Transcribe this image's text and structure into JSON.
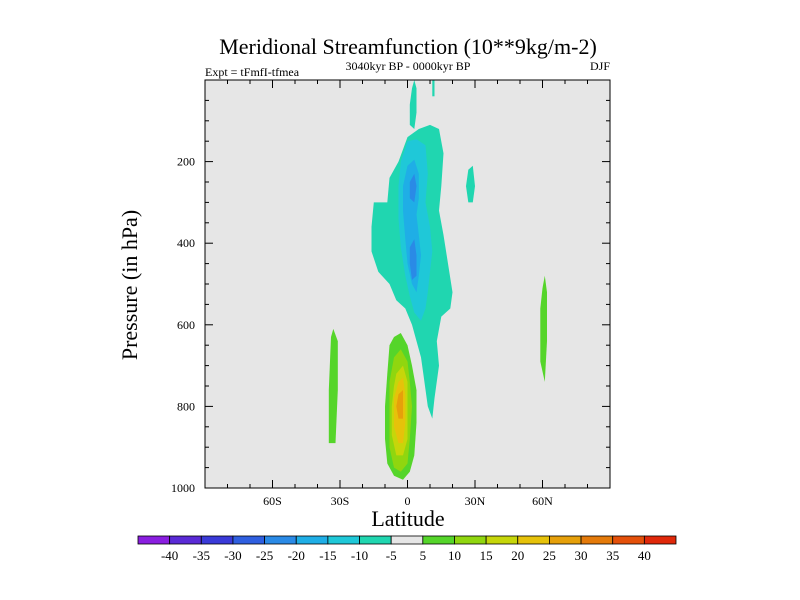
{
  "chart_data": {
    "type": "heatmap",
    "title": "Meridional Streamfunction (10**9kg/m-2)",
    "subtitle_left": "Expt = tFmfI-tfmea",
    "subtitle_center": "3040kyr BP - 0000kyr BP",
    "subtitle_right": "DJF",
    "xlabel": "Latitude",
    "ylabel": "Pressure (in hPa)",
    "xlim": [
      -90,
      90
    ],
    "ylim": [
      0,
      1000
    ],
    "y_inverted": true,
    "x_ticks": [
      {
        "value": -60,
        "label": "60S"
      },
      {
        "value": -30,
        "label": "30S"
      },
      {
        "value": 0,
        "label": "0"
      },
      {
        "value": 30,
        "label": "30N"
      },
      {
        "value": 60,
        "label": "60N"
      }
    ],
    "y_ticks": [
      {
        "value": 200,
        "label": "200"
      },
      {
        "value": 400,
        "label": "400"
      },
      {
        "value": 600,
        "label": "600"
      },
      {
        "value": 800,
        "label": "800"
      },
      {
        "value": 1000,
        "label": "1000"
      }
    ],
    "background_color": "#e6e6e6",
    "colorbar": {
      "levels": [
        "-40",
        "-35",
        "-30",
        "-25",
        "-20",
        "-15",
        "-10",
        "-5",
        "5",
        "10",
        "15",
        "20",
        "25",
        "30",
        "35",
        "40"
      ],
      "colors": [
        "#8a1ee0",
        "#5a2ad6",
        "#3a3ad8",
        "#2f5fe0",
        "#2a8ae6",
        "#1faee6",
        "#1fc8d8",
        "#20d6b0",
        "#e6e6e6",
        "#55d52a",
        "#90d60f",
        "#c6d60a",
        "#e6c20a",
        "#e6a00a",
        "#e47a0a",
        "#e4500a",
        "#e0280a"
      ]
    },
    "regions": [
      {
        "level": "-10..-5",
        "color": "#20d6b0",
        "points": [
          [
            -9,
            300
          ],
          [
            -8,
            240
          ],
          [
            -4,
            200
          ],
          [
            0,
            140
          ],
          [
            5,
            120
          ],
          [
            10,
            110
          ],
          [
            14,
            120
          ],
          [
            16,
            180
          ],
          [
            15,
            260
          ],
          [
            14,
            320
          ],
          [
            16,
            380
          ],
          [
            18,
            450
          ],
          [
            20,
            520
          ],
          [
            19,
            560
          ],
          [
            15,
            580
          ],
          [
            13,
            640
          ],
          [
            14,
            700
          ],
          [
            12,
            780
          ],
          [
            11,
            830
          ],
          [
            9,
            800
          ],
          [
            7,
            720
          ],
          [
            6,
            680
          ],
          [
            4,
            640
          ],
          [
            2,
            600
          ],
          [
            -1,
            560
          ],
          [
            -5,
            540
          ],
          [
            -8,
            500
          ],
          [
            -13,
            470
          ],
          [
            -16,
            420
          ],
          [
            -16,
            360
          ],
          [
            -15,
            300
          ]
        ]
      },
      {
        "level": "-10..-5",
        "color": "#20d6b0",
        "points": [
          [
            2,
            20
          ],
          [
            3,
            0
          ],
          [
            4,
            20
          ],
          [
            4,
            80
          ],
          [
            3,
            120
          ],
          [
            1,
            110
          ],
          [
            1,
            60
          ]
        ]
      },
      {
        "level": "-10..-5",
        "color": "#20d6b0",
        "points": [
          [
            11,
            0
          ],
          [
            12,
            0
          ],
          [
            12,
            40
          ],
          [
            11,
            40
          ]
        ]
      },
      {
        "level": "-10..-5",
        "color": "#20d6b0",
        "points": [
          [
            27,
            220
          ],
          [
            29,
            210
          ],
          [
            30,
            260
          ],
          [
            29,
            300
          ],
          [
            27,
            300
          ],
          [
            26,
            260
          ]
        ]
      },
      {
        "level": "-15..-10",
        "color": "#1fc8d8",
        "points": [
          [
            -4,
            260
          ],
          [
            -3,
            200
          ],
          [
            0,
            150
          ],
          [
            4,
            145
          ],
          [
            8,
            160
          ],
          [
            9,
            230
          ],
          [
            8,
            300
          ],
          [
            10,
            360
          ],
          [
            11,
            420
          ],
          [
            10,
            470
          ],
          [
            9,
            520
          ],
          [
            8,
            560
          ],
          [
            6,
            590
          ],
          [
            3,
            570
          ],
          [
            1,
            530
          ],
          [
            -1,
            480
          ],
          [
            -3,
            410
          ],
          [
            -4,
            340
          ]
        ]
      },
      {
        "level": "-20..-15",
        "color": "#1faee6",
        "points": [
          [
            -2,
            260
          ],
          [
            0,
            210
          ],
          [
            3,
            195
          ],
          [
            5,
            230
          ],
          [
            5,
            290
          ],
          [
            4,
            330
          ],
          [
            5,
            380
          ],
          [
            6,
            430
          ],
          [
            5,
            480
          ],
          [
            4,
            520
          ],
          [
            2,
            500
          ],
          [
            0,
            450
          ],
          [
            -1,
            390
          ],
          [
            -2,
            320
          ]
        ]
      },
      {
        "level": "-25..-20",
        "color": "#2a8ae6",
        "points": [
          [
            1,
            250
          ],
          [
            3,
            230
          ],
          [
            4,
            260
          ],
          [
            3,
            300
          ],
          [
            1,
            290
          ]
        ]
      },
      {
        "level": "-25..-20",
        "color": "#2a8ae6",
        "points": [
          [
            1,
            410
          ],
          [
            3,
            390
          ],
          [
            4,
            430
          ],
          [
            4,
            480
          ],
          [
            2,
            490
          ],
          [
            1,
            450
          ]
        ]
      },
      {
        "level": "5..10",
        "color": "#55d52a",
        "points": [
          [
            -34,
            630
          ],
          [
            -33,
            610
          ],
          [
            -31,
            640
          ],
          [
            -31,
            760
          ],
          [
            -32,
            890
          ],
          [
            -35,
            890
          ],
          [
            -35,
            760
          ]
        ]
      },
      {
        "level": "5..10",
        "color": "#55d52a",
        "points": [
          [
            60,
            510
          ],
          [
            61,
            480
          ],
          [
            62,
            520
          ],
          [
            62,
            640
          ],
          [
            61,
            740
          ],
          [
            59,
            690
          ],
          [
            59,
            560
          ]
        ]
      },
      {
        "level": "5..10",
        "color": "#55d52a",
        "points": [
          [
            -8,
            650
          ],
          [
            -6,
            630
          ],
          [
            -3,
            620
          ],
          [
            0,
            650
          ],
          [
            2,
            700
          ],
          [
            4,
            760
          ],
          [
            4,
            840
          ],
          [
            3,
            920
          ],
          [
            1,
            960
          ],
          [
            -2,
            980
          ],
          [
            -6,
            970
          ],
          [
            -9,
            940
          ],
          [
            -10,
            880
          ],
          [
            -10,
            800
          ],
          [
            -9,
            720
          ]
        ]
      },
      {
        "level": "10..15",
        "color": "#90d60f",
        "points": [
          [
            -6,
            680
          ],
          [
            -3,
            660
          ],
          [
            0,
            690
          ],
          [
            1,
            740
          ],
          [
            2,
            800
          ],
          [
            1,
            880
          ],
          [
            0,
            940
          ],
          [
            -3,
            960
          ],
          [
            -6,
            950
          ],
          [
            -8,
            900
          ],
          [
            -8,
            820
          ],
          [
            -8,
            740
          ]
        ]
      },
      {
        "level": "15..20",
        "color": "#c6d60a",
        "points": [
          [
            -5,
            720
          ],
          [
            -2,
            700
          ],
          [
            0,
            740
          ],
          [
            0,
            800
          ],
          [
            0,
            880
          ],
          [
            -2,
            920
          ],
          [
            -5,
            920
          ],
          [
            -7,
            870
          ],
          [
            -7,
            800
          ],
          [
            -6,
            750
          ]
        ]
      },
      {
        "level": "20..25",
        "color": "#e6c20a",
        "points": [
          [
            -4,
            740
          ],
          [
            -2,
            730
          ],
          [
            -1,
            770
          ],
          [
            -1,
            840
          ],
          [
            -2,
            890
          ],
          [
            -4,
            890
          ],
          [
            -6,
            850
          ],
          [
            -6,
            780
          ]
        ]
      },
      {
        "level": "25..30",
        "color": "#e6a00a",
        "points": [
          [
            -4,
            770
          ],
          [
            -2,
            760
          ],
          [
            -2,
            800
          ],
          [
            -2,
            830
          ],
          [
            -4,
            830
          ],
          [
            -5,
            800
          ]
        ]
      }
    ]
  }
}
